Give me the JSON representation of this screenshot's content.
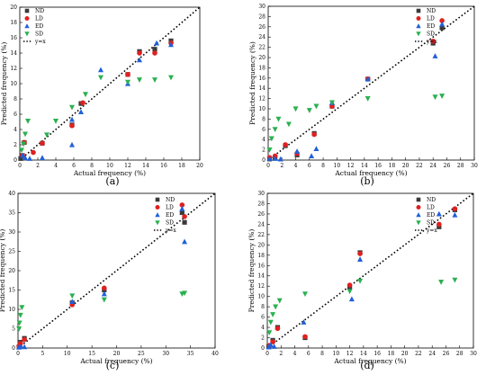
{
  "figure": {
    "panels": [
      "a",
      "b",
      "c",
      "d"
    ],
    "captions": [
      "(a)",
      "(b)",
      "(c)",
      "(d)"
    ]
  },
  "legend_labels": [
    "ND",
    "LD",
    "ED",
    "SD",
    "y=x"
  ],
  "series_colors": {
    "ND": "#3a3a3a",
    "LD": "#e02020",
    "ED": "#2060d8",
    "SD": "#2ab050",
    "y=x": "#000000"
  },
  "chart_data": [
    {
      "type": "scatter",
      "xlabel": "Actual frequency (%)",
      "ylabel": "Predicted frequency (%)",
      "xlim": [
        0,
        20
      ],
      "ylim": [
        0,
        20
      ],
      "xticks": [
        0,
        2,
        4,
        6,
        8,
        10,
        12,
        14,
        16,
        18,
        20
      ],
      "yticks": [
        0,
        2,
        4,
        6,
        8,
        10,
        12,
        14,
        16,
        18,
        20
      ],
      "legend": "top-left",
      "series": [
        {
          "name": "ND",
          "points": [
            [
              0.1,
              0.2
            ],
            [
              0.3,
              0.6
            ],
            [
              0.5,
              2.3
            ],
            [
              2.5,
              2.2
            ],
            [
              5.8,
              4.6
            ],
            [
              6.8,
              7.4
            ],
            [
              12,
              11.2
            ],
            [
              13.3,
              14.2
            ],
            [
              15.0,
              14.5
            ],
            [
              16.8,
              15.6
            ]
          ]
        },
        {
          "name": "LD",
          "points": [
            [
              0.3,
              0.6
            ],
            [
              0.5,
              2.3
            ],
            [
              1.5,
              1.0
            ],
            [
              2.5,
              2.2
            ],
            [
              5.8,
              4.5
            ],
            [
              7.0,
              7.5
            ],
            [
              12,
              11.2
            ],
            [
              13.3,
              14.0
            ],
            [
              15.0,
              14.0
            ],
            [
              16.8,
              15.3
            ]
          ]
        },
        {
          "name": "ED",
          "points": [
            [
              0.3,
              0.6
            ],
            [
              0.6,
              0.3
            ],
            [
              1.1,
              0.2
            ],
            [
              2.5,
              0.3
            ],
            [
              5.8,
              2.0
            ],
            [
              5.8,
              5.3
            ],
            [
              6.8,
              6.3
            ],
            [
              9,
              11.8
            ],
            [
              12,
              10.0
            ],
            [
              13.3,
              13.1
            ],
            [
              15.2,
              15.3
            ],
            [
              16.8,
              15.1
            ]
          ]
        },
        {
          "name": "SD",
          "points": [
            [
              0.2,
              1.3
            ],
            [
              0.4,
              2.1
            ],
            [
              0.6,
              3.4
            ],
            [
              0.9,
              5.1
            ],
            [
              3.0,
              3.3
            ],
            [
              4.0,
              5.1
            ],
            [
              5.8,
              6.9
            ],
            [
              7.3,
              8.6
            ],
            [
              9,
              10.8
            ],
            [
              12,
              10.2
            ],
            [
              13.3,
              10.5
            ],
            [
              15.0,
              10.5
            ],
            [
              16.8,
              10.8
            ]
          ]
        }
      ]
    },
    {
      "type": "scatter",
      "xlabel": "Actual frequency (%)",
      "ylabel": "Predicted frequency (%)",
      "xlim": [
        0,
        30
      ],
      "ylim": [
        0,
        30
      ],
      "xticks": [
        0,
        2,
        4,
        6,
        8,
        10,
        12,
        14,
        16,
        18,
        20,
        22,
        24,
        26,
        28,
        30
      ],
      "yticks": [
        0,
        2,
        4,
        6,
        8,
        10,
        12,
        14,
        16,
        18,
        20,
        22,
        24,
        26,
        28,
        30
      ],
      "legend": "top-right",
      "series": [
        {
          "name": "ND",
          "points": [
            [
              0.2,
              0.2
            ],
            [
              1,
              0.5
            ],
            [
              2.5,
              2.8
            ],
            [
              4.2,
              1.0
            ],
            [
              6.7,
              5.2
            ],
            [
              9.3,
              10.5
            ],
            [
              14.5,
              15.8
            ],
            [
              24.0,
              22.8
            ],
            [
              25.3,
              25.8
            ]
          ]
        },
        {
          "name": "LD",
          "points": [
            [
              0.2,
              0.5
            ],
            [
              1,
              0.8
            ],
            [
              2.5,
              3.0
            ],
            [
              4.2,
              1.3
            ],
            [
              6.7,
              5.0
            ],
            [
              9.3,
              10.5
            ],
            [
              14.5,
              15.8
            ],
            [
              24.0,
              23.2
            ],
            [
              25.3,
              27.2
            ]
          ]
        },
        {
          "name": "ED",
          "points": [
            [
              0.2,
              0.3
            ],
            [
              1,
              0.3
            ],
            [
              1.8,
              0.2
            ],
            [
              4.2,
              1.7
            ],
            [
              6.3,
              0.8
            ],
            [
              7,
              2.2
            ],
            [
              9.3,
              11.2
            ],
            [
              14.5,
              15.8
            ],
            [
              24.3,
              20.3
            ],
            [
              25.3,
              26.5
            ]
          ]
        },
        {
          "name": "SD",
          "points": [
            [
              0.2,
              2.0
            ],
            [
              0.5,
              4.2
            ],
            [
              1.0,
              6.0
            ],
            [
              1.5,
              8.0
            ],
            [
              3.0,
              7.0
            ],
            [
              4.0,
              10.0
            ],
            [
              6.0,
              9.7
            ],
            [
              7,
              10.5
            ],
            [
              9.3,
              11.2
            ],
            [
              14.5,
              12.0
            ],
            [
              24.3,
              12.3
            ],
            [
              25.3,
              12.5
            ]
          ]
        }
      ]
    },
    {
      "type": "scatter",
      "xlabel": "Actual frequency (%)",
      "ylabel": "Predicted frequency (%)",
      "xlim": [
        0,
        40
      ],
      "ylim": [
        0,
        40
      ],
      "xticks": [
        0,
        5,
        10,
        15,
        20,
        25,
        30,
        35,
        40
      ],
      "yticks": [
        0,
        5,
        10,
        15,
        20,
        25,
        30,
        35,
        40
      ],
      "legend": "top-right",
      "series": [
        {
          "name": "ND",
          "points": [
            [
              0.2,
              0.3
            ],
            [
              0.5,
              1.5
            ],
            [
              1.3,
              2.5
            ],
            [
              11,
              11.7
            ],
            [
              17.5,
              15.0
            ],
            [
              33.3,
              35.0
            ],
            [
              33.8,
              32.5
            ]
          ]
        },
        {
          "name": "LD",
          "points": [
            [
              0.2,
              0.5
            ],
            [
              0.5,
              1.2
            ],
            [
              1.3,
              2.2
            ],
            [
              11,
              11.2
            ],
            [
              17.5,
              15.5
            ],
            [
              33.3,
              37.0
            ],
            [
              33.8,
              34.0
            ]
          ]
        },
        {
          "name": "ED",
          "points": [
            [
              0.2,
              0.2
            ],
            [
              0.6,
              0.4
            ],
            [
              1.3,
              0.3
            ],
            [
              11,
              12.0
            ],
            [
              17.5,
              14.0
            ],
            [
              33.3,
              36.0
            ],
            [
              33.8,
              27.5
            ]
          ]
        },
        {
          "name": "SD",
          "points": [
            [
              0.2,
              5.0
            ],
            [
              0.3,
              6.5
            ],
            [
              0.5,
              8.5
            ],
            [
              0.8,
              10.5
            ],
            [
              11,
              13.5
            ],
            [
              17.5,
              12.5
            ],
            [
              33.3,
              14.0
            ],
            [
              33.8,
              14.2
            ]
          ]
        }
      ]
    },
    {
      "type": "scatter",
      "xlabel": "Actual frequency (%)",
      "ylabel": "Predicted frequency (%)",
      "xlim": [
        0,
        30
      ],
      "ylim": [
        0,
        30
      ],
      "xticks": [
        0,
        2,
        4,
        6,
        8,
        10,
        12,
        14,
        16,
        18,
        20,
        22,
        24,
        26,
        28,
        30
      ],
      "yticks": [
        0,
        2,
        4,
        6,
        8,
        10,
        12,
        14,
        16,
        18,
        20,
        22,
        24,
        26,
        28,
        30
      ],
      "legend": "top-right",
      "series": [
        {
          "name": "ND",
          "points": [
            [
              0.2,
              0.3
            ],
            [
              0.8,
              1.5
            ],
            [
              1.5,
              4.0
            ],
            [
              5.5,
              2.0
            ],
            [
              12.0,
              11.7
            ],
            [
              13.5,
              18.5
            ],
            [
              25.0,
              23.5
            ],
            [
              27.3,
              26.8
            ]
          ]
        },
        {
          "name": "LD",
          "points": [
            [
              0.3,
              0.5
            ],
            [
              0.8,
              1.2
            ],
            [
              1.5,
              3.8
            ],
            [
              5.5,
              2.2
            ],
            [
              12.0,
              12.2
            ],
            [
              13.5,
              18.3
            ],
            [
              25.0,
              24.0
            ],
            [
              27.3,
              27.0
            ]
          ]
        },
        {
          "name": "ED",
          "points": [
            [
              0.2,
              0.2
            ],
            [
              0.5,
              0.6
            ],
            [
              1.0,
              0.3
            ],
            [
              5.3,
              5.0
            ],
            [
              12.3,
              9.5
            ],
            [
              13.5,
              17.2
            ],
            [
              25.0,
              26.0
            ],
            [
              27.3,
              25.8
            ]
          ]
        },
        {
          "name": "SD",
          "points": [
            [
              0.3,
              3.0
            ],
            [
              0.5,
              5.0
            ],
            [
              0.8,
              6.5
            ],
            [
              1.2,
              8.0
            ],
            [
              1.8,
              9.2
            ],
            [
              5.5,
              10.5
            ],
            [
              12.0,
              11.0
            ],
            [
              13.5,
              13.0
            ],
            [
              25.3,
              12.8
            ],
            [
              27.3,
              13.2
            ]
          ]
        }
      ]
    }
  ]
}
